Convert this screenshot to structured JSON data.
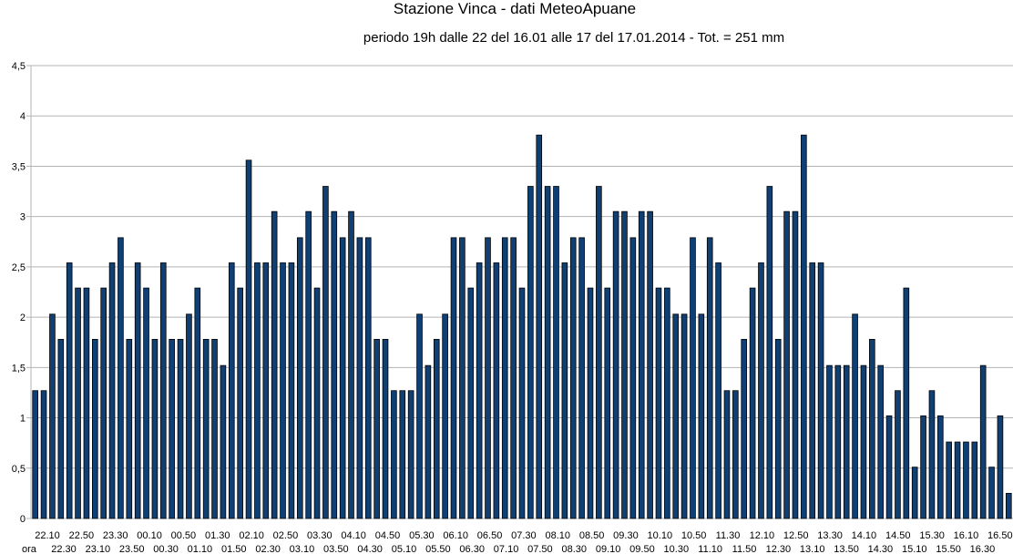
{
  "chart_data": {
    "type": "bar",
    "title": "Stazione Vinca - dati MeteoApuane",
    "subtitle": "periodo 19h dalle 22 del 16.01 alle 17 del 17.01.2014 - Tot. = 251 mm",
    "xlabel": "ora",
    "ylabel": "",
    "ylim": [
      0,
      4.5
    ],
    "yticks": [
      "0",
      "0,5",
      "1",
      "1,5",
      "2",
      "2,5",
      "3",
      "3,5",
      "4",
      "4,5"
    ],
    "grid": true,
    "legend": "none",
    "bar_color": "#0f3f73",
    "tick_labels_row1": [
      "22.10",
      "22.50",
      "23.30",
      "00.10",
      "00.50",
      "01.30",
      "02.10",
      "02.50",
      "03.30",
      "04.10",
      "04.50",
      "05.30",
      "06.10",
      "06.50",
      "07.30",
      "08.10",
      "08.50",
      "09.30",
      "10.10",
      "10.50",
      "11.30",
      "12.10",
      "12.50",
      "13.30",
      "14.10",
      "14.50",
      "15.30",
      "16.10",
      "16.50"
    ],
    "tick_labels_row2": [
      "22.30",
      "23.10",
      "23.50",
      "00.30",
      "01.10",
      "01.50",
      "02.30",
      "03.10",
      "03.50",
      "04.30",
      "05.10",
      "05.50",
      "06.30",
      "07.10",
      "07.50",
      "08.30",
      "09.10",
      "09.50",
      "10.30",
      "11.10",
      "11.50",
      "12.30",
      "13.10",
      "13.50",
      "14.30",
      "15.10",
      "15.50",
      "16.30"
    ],
    "values": [
      1.27,
      1.27,
      2.03,
      1.78,
      2.54,
      2.29,
      2.29,
      1.78,
      2.29,
      2.54,
      2.79,
      1.78,
      2.54,
      2.29,
      1.78,
      2.54,
      1.78,
      1.78,
      2.03,
      2.29,
      1.78,
      1.78,
      1.52,
      2.54,
      2.29,
      3.56,
      2.54,
      2.54,
      3.05,
      2.54,
      2.54,
      2.79,
      3.05,
      2.29,
      3.3,
      3.05,
      2.79,
      3.05,
      2.79,
      2.79,
      1.78,
      1.78,
      1.27,
      1.27,
      1.27,
      2.03,
      1.52,
      1.78,
      2.03,
      2.79,
      2.79,
      2.29,
      2.54,
      2.79,
      2.54,
      2.79,
      2.79,
      2.29,
      3.3,
      3.81,
      3.3,
      3.3,
      2.54,
      2.79,
      2.79,
      2.29,
      3.3,
      2.29,
      3.05,
      3.05,
      2.79,
      3.05,
      3.05,
      2.29,
      2.29,
      2.03,
      2.03,
      2.79,
      2.03,
      2.79,
      2.54,
      1.27,
      1.27,
      1.78,
      2.29,
      2.54,
      3.3,
      1.78,
      3.05,
      3.05,
      3.81,
      2.54,
      2.54,
      1.52,
      1.52,
      1.52,
      2.03,
      1.52,
      1.78,
      1.52,
      1.02,
      1.27,
      2.29,
      0.51,
      1.02,
      1.27,
      1.02,
      0.76,
      0.76,
      0.76,
      0.76,
      1.52,
      0.51,
      1.02,
      0.25
    ]
  }
}
